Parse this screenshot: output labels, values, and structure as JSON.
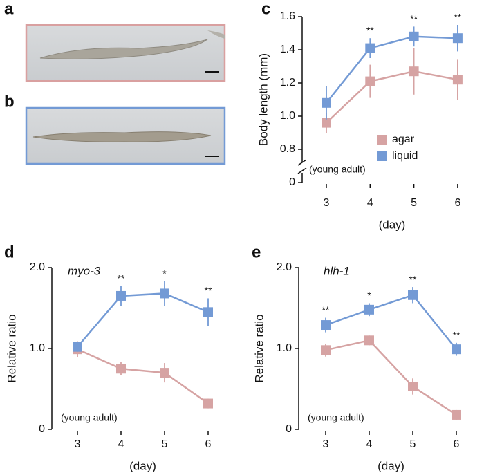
{
  "image_panels": [
    {
      "label": "a"
    },
    {
      "label": "b"
    }
  ],
  "chart_data": [
    {
      "panel": "c",
      "type": "line",
      "ylabel": "Body length (mm)",
      "xlabel": "(day)",
      "note": "(young adult)",
      "categories": [
        "3",
        "4",
        "5",
        "6"
      ],
      "series": [
        {
          "name": "agar",
          "color": "#d6a3a3",
          "values": [
            0.96,
            1.21,
            1.27,
            1.22
          ],
          "errors": [
            0.06,
            0.1,
            0.14,
            0.12
          ]
        },
        {
          "name": "liquid",
          "color": "#739ad5",
          "values": [
            1.08,
            1.41,
            1.48,
            1.47
          ],
          "errors": [
            0.1,
            0.06,
            0.06,
            0.08
          ]
        }
      ],
      "significance": [
        null,
        "**",
        "**",
        "**"
      ],
      "ylim": [
        0,
        1.6
      ],
      "axis_break": [
        0,
        0.8
      ],
      "yticks": [
        0,
        0.8,
        {
          "value": 1,
          "label": "1.0"
        },
        1.2,
        1.4,
        1.6
      ],
      "legend": "right"
    },
    {
      "panel": "d",
      "type": "line",
      "title": "myo-3",
      "ylabel": "Relative ratio",
      "xlabel": "(day)",
      "note": "(young adult)",
      "categories": [
        "3",
        "4",
        "5",
        "6"
      ],
      "series": [
        {
          "color": "#d6a3a3",
          "values": [
            0.99,
            0.75,
            0.7,
            0.32
          ],
          "errors": [
            0.1,
            0.08,
            0.12,
            0.06
          ]
        },
        {
          "color": "#739ad5",
          "values": [
            1.02,
            1.65,
            1.68,
            1.45
          ],
          "errors": [
            0.06,
            0.12,
            0.15,
            0.17
          ]
        }
      ],
      "significance": [
        null,
        "**",
        "*",
        "**"
      ],
      "ylim": [
        0,
        2
      ],
      "yticks": [
        0,
        {
          "value": 1,
          "label": "1.0"
        },
        {
          "value": 2,
          "label": "2.0"
        }
      ]
    },
    {
      "panel": "e",
      "type": "line",
      "title": "hlh-1",
      "ylabel": "Relative ratio",
      "xlabel": "(day)",
      "note": "(young adult)",
      "categories": [
        "3",
        "4",
        "5",
        "6"
      ],
      "series": [
        {
          "color": "#d6a3a3",
          "values": [
            0.98,
            1.1,
            0.53,
            0.18
          ],
          "errors": [
            0.08,
            0.06,
            0.1,
            0.06
          ]
        },
        {
          "color": "#739ad5",
          "values": [
            1.29,
            1.48,
            1.66,
            0.99
          ],
          "errors": [
            0.09,
            0.08,
            0.1,
            0.08
          ]
        }
      ],
      "significance": [
        "**",
        "*",
        "**",
        "**"
      ],
      "ylim": [
        0,
        2
      ],
      "yticks": [
        0,
        {
          "value": 1,
          "label": "1.0"
        },
        {
          "value": 2,
          "label": "2.0"
        }
      ]
    }
  ]
}
